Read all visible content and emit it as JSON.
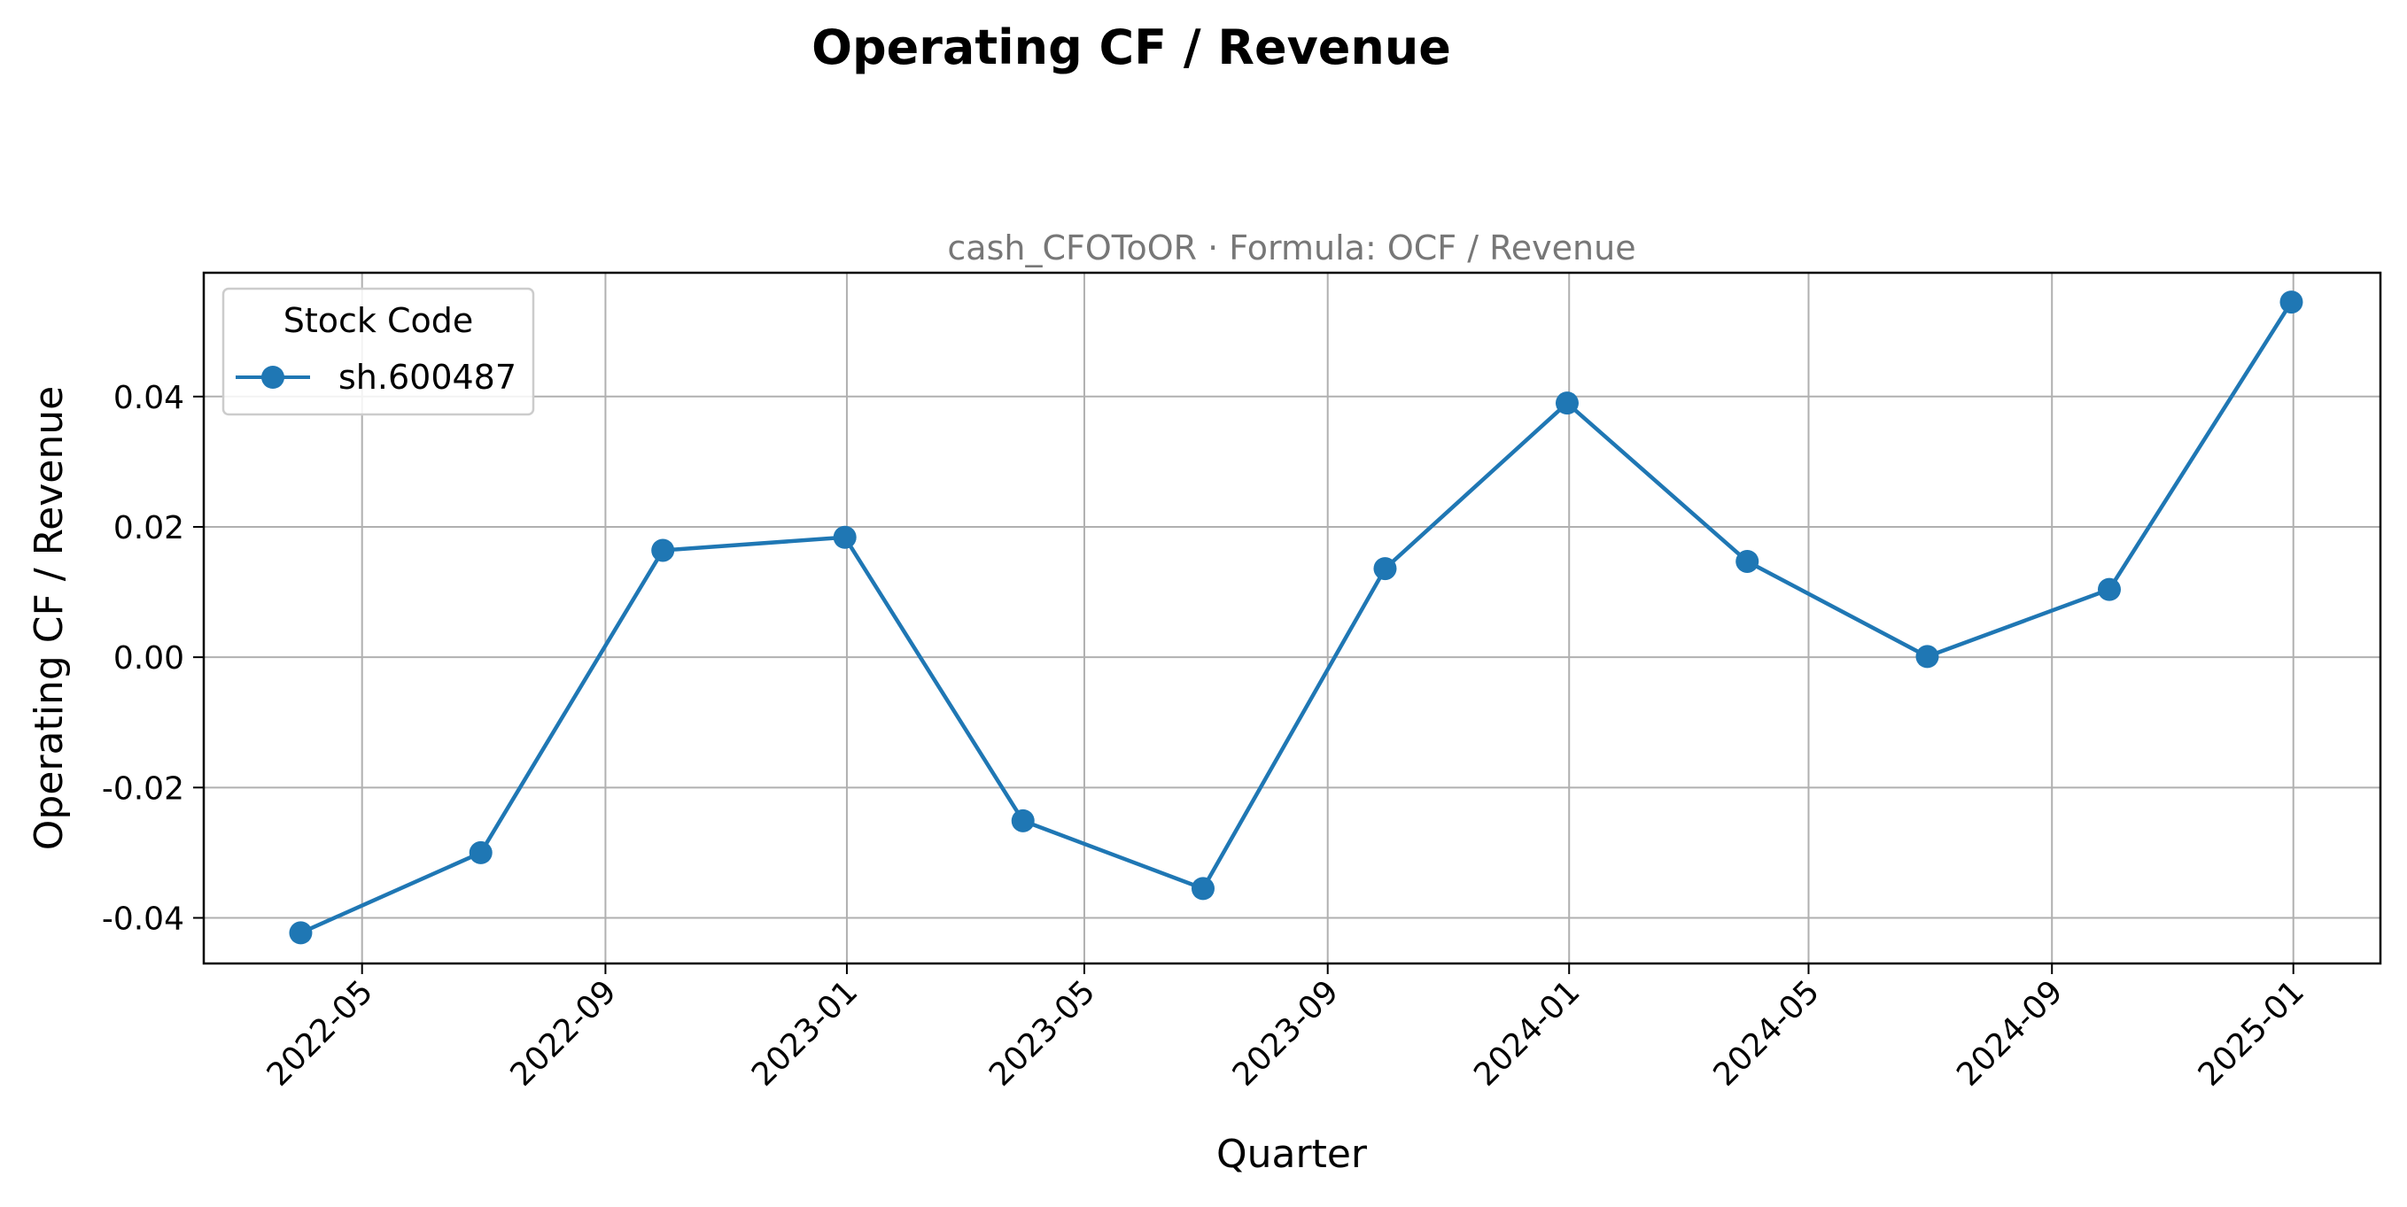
{
  "chart_data": {
    "type": "line",
    "title": "Operating CF / Revenue",
    "subtitle": "cash_CFOToOR · Formula: OCF / Revenue",
    "xlabel": "Quarter",
    "ylabel": "Operating CF / Revenue",
    "x": [
      "2022-03-31",
      "2022-06-30",
      "2022-09-30",
      "2022-12-31",
      "2023-03-31",
      "2023-06-30",
      "2023-09-30",
      "2023-12-31",
      "2024-03-31",
      "2024-06-30",
      "2024-09-30",
      "2024-12-31"
    ],
    "series": [
      {
        "name": "sh.600487",
        "color": "#1f77b4",
        "values": [
          -0.0423,
          -0.03,
          0.0164,
          0.0184,
          -0.0251,
          -0.0355,
          0.0136,
          0.039,
          0.0147,
          0.0001,
          0.0104,
          0.0545
        ]
      }
    ],
    "x_ticks": [
      "2022-05",
      "2022-09",
      "2023-01",
      "2023-05",
      "2023-09",
      "2024-01",
      "2024-05",
      "2024-09",
      "2025-01"
    ],
    "y_ticks": [
      "-0.04",
      "-0.02",
      "0.00",
      "0.02",
      "0.04"
    ],
    "ylim": [
      -0.047,
      0.059
    ],
    "xlim": [
      "2022-02-10",
      "2025-02-14"
    ],
    "grid": true,
    "legend": {
      "title": "Stock Code",
      "position": "upper-left"
    }
  }
}
